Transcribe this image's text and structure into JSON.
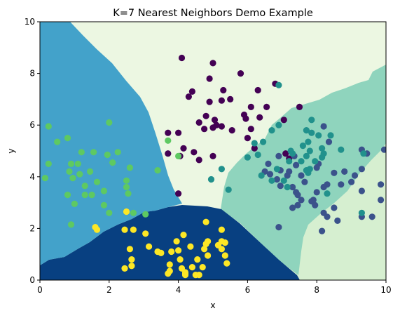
{
  "chart_data": {
    "type": "scatter",
    "title": "K=7 Nearest Neighbors Demo Example",
    "xlabel": "x",
    "ylabel": "y",
    "xlim": [
      0,
      10
    ],
    "ylim": [
      0,
      10
    ],
    "xticks": [
      "0",
      "2",
      "4",
      "6",
      "8",
      "10"
    ],
    "yticks": [
      "0",
      "2",
      "4",
      "6",
      "8",
      "10"
    ],
    "grid": false,
    "legend": "none",
    "class_colors": [
      "#440154",
      "#3b528b",
      "#21918c",
      "#5ec962",
      "#fde725"
    ],
    "region_colors": [
      "#084081",
      "#43a2ca",
      "#8fd4bd",
      "#d6efd0",
      "#ecf7e2"
    ],
    "series": [
      {
        "class": 0,
        "points": [
          [
            4.1,
            8.6
          ],
          [
            5.0,
            8.4
          ],
          [
            4.9,
            7.8
          ],
          [
            5.8,
            8.0
          ],
          [
            6.8,
            7.6
          ],
          [
            4.4,
            7.3
          ],
          [
            5.3,
            7.35
          ],
          [
            5.5,
            7.0
          ],
          [
            6.3,
            7.35
          ],
          [
            4.3,
            7.1
          ],
          [
            4.9,
            6.9
          ],
          [
            5.25,
            6.95
          ],
          [
            6.1,
            6.7
          ],
          [
            6.55,
            6.7
          ],
          [
            7.5,
            6.7
          ],
          [
            6.35,
            6.3
          ],
          [
            5.9,
            6.4
          ],
          [
            4.8,
            6.35
          ],
          [
            5.05,
            6.2
          ],
          [
            5.25,
            5.95
          ],
          [
            5.1,
            6.0
          ],
          [
            4.6,
            6.1
          ],
          [
            4.75,
            5.85
          ],
          [
            5.0,
            5.9
          ],
          [
            5.55,
            5.8
          ],
          [
            6.1,
            5.85
          ],
          [
            5.95,
            6.25
          ],
          [
            6.0,
            5.5
          ],
          [
            6.2,
            5.1
          ],
          [
            3.7,
            5.7
          ],
          [
            4.0,
            5.7
          ],
          [
            4.45,
            4.95
          ],
          [
            4.15,
            5.1
          ],
          [
            4.05,
            4.8
          ],
          [
            4.6,
            4.65
          ],
          [
            3.7,
            4.9
          ],
          [
            4.0,
            3.35
          ],
          [
            5.0,
            4.8
          ],
          [
            7.05,
            6.2
          ],
          [
            7.1,
            4.9
          ],
          [
            7.2,
            4.7
          ]
        ]
      },
      {
        "class": 1,
        "points": [
          [
            6.5,
            4.2
          ],
          [
            6.65,
            4.1
          ],
          [
            6.85,
            3.9
          ],
          [
            6.95,
            3.65
          ],
          [
            7.3,
            3.6
          ],
          [
            7.4,
            3.4
          ],
          [
            7.45,
            3.3
          ],
          [
            7.55,
            3.1
          ],
          [
            7.3,
            2.8
          ],
          [
            7.45,
            2.9
          ],
          [
            7.9,
            3.1
          ],
          [
            7.85,
            3.05
          ],
          [
            7.95,
            2.9
          ],
          [
            8.2,
            2.6
          ],
          [
            8.3,
            2.45
          ],
          [
            8.5,
            2.8
          ],
          [
            8.6,
            2.3
          ],
          [
            8.15,
            1.9
          ],
          [
            8.0,
            3.4
          ],
          [
            8.3,
            3.7
          ],
          [
            8.5,
            4.15
          ],
          [
            8.2,
            3.6
          ],
          [
            8.7,
            3.7
          ],
          [
            9.0,
            3.8
          ],
          [
            8.8,
            4.2
          ],
          [
            9.1,
            4.05
          ],
          [
            9.3,
            4.3
          ],
          [
            9.45,
            4.9
          ],
          [
            9.3,
            5.05
          ],
          [
            9.3,
            3.45
          ],
          [
            9.3,
            2.45
          ],
          [
            9.6,
            2.45
          ],
          [
            9.85,
            3.1
          ],
          [
            9.85,
            3.7
          ],
          [
            9.95,
            5.05
          ],
          [
            7.2,
            4.2
          ],
          [
            7.4,
            4.45
          ],
          [
            7.15,
            4.05
          ],
          [
            7.35,
            4.8
          ],
          [
            6.9,
            4.8
          ],
          [
            6.9,
            2.05
          ],
          [
            8.2,
            5.95
          ],
          [
            8.35,
            5.35
          ],
          [
            8.05,
            4.5
          ],
          [
            8.0,
            4.35
          ],
          [
            7.55,
            4.05
          ],
          [
            7.65,
            3.8
          ],
          [
            6.6,
            4.5
          ],
          [
            6.95,
            4.25
          ]
        ]
      },
      {
        "class": 2,
        "points": [
          [
            6.9,
            7.55
          ],
          [
            6.9,
            6.0
          ],
          [
            6.7,
            5.8
          ],
          [
            6.45,
            5.35
          ],
          [
            6.2,
            5.3
          ],
          [
            6.3,
            4.85
          ],
          [
            6.4,
            4.05
          ],
          [
            6.7,
            3.85
          ],
          [
            6.85,
            4.3
          ],
          [
            7.05,
            3.85
          ],
          [
            7.15,
            3.6
          ],
          [
            7.2,
            4.6
          ],
          [
            7.25,
            5.0
          ],
          [
            7.3,
            4.9
          ],
          [
            7.55,
            4.6
          ],
          [
            7.6,
            5.2
          ],
          [
            7.7,
            4.8
          ],
          [
            7.7,
            4.25
          ],
          [
            7.8,
            4.3
          ],
          [
            7.95,
            4.6
          ],
          [
            7.8,
            5.0
          ],
          [
            7.75,
            5.35
          ],
          [
            7.7,
            5.8
          ],
          [
            7.85,
            6.2
          ],
          [
            7.85,
            5.7
          ],
          [
            8.05,
            5.6
          ],
          [
            8.15,
            5.1
          ],
          [
            8.15,
            4.75
          ],
          [
            8.2,
            4.9
          ],
          [
            8.7,
            5.05
          ],
          [
            8.4,
            5.6
          ],
          [
            9.35,
            4.9
          ],
          [
            9.3,
            2.6
          ],
          [
            8.3,
            3.35
          ],
          [
            6.0,
            4.75
          ],
          [
            5.25,
            4.3
          ],
          [
            5.45,
            3.5
          ],
          [
            4.95,
            3.9
          ],
          [
            7.75,
            4.15
          ]
        ]
      },
      {
        "class": 3,
        "points": [
          [
            0.25,
            5.95
          ],
          [
            0.15,
            3.95
          ],
          [
            0.25,
            4.5
          ],
          [
            0.5,
            5.35
          ],
          [
            0.8,
            5.5
          ],
          [
            0.85,
            4.2
          ],
          [
            0.9,
            4.5
          ],
          [
            0.95,
            3.95
          ],
          [
            0.8,
            3.3
          ],
          [
            1.0,
            2.95
          ],
          [
            0.9,
            2.15
          ],
          [
            1.1,
            4.5
          ],
          [
            1.15,
            4.1
          ],
          [
            1.2,
            4.95
          ],
          [
            1.3,
            3.65
          ],
          [
            1.3,
            3.3
          ],
          [
            1.45,
            4.2
          ],
          [
            1.5,
            3.3
          ],
          [
            1.55,
            4.95
          ],
          [
            1.65,
            3.8
          ],
          [
            1.85,
            3.45
          ],
          [
            1.85,
            2.9
          ],
          [
            2.0,
            2.6
          ],
          [
            1.95,
            4.85
          ],
          [
            2.0,
            6.1
          ],
          [
            2.1,
            4.55
          ],
          [
            2.25,
            4.95
          ],
          [
            2.5,
            3.85
          ],
          [
            2.5,
            3.6
          ],
          [
            2.55,
            3.35
          ],
          [
            2.6,
            4.35
          ],
          [
            2.7,
            2.6
          ],
          [
            3.05,
            2.55
          ],
          [
            3.4,
            4.25
          ],
          [
            3.7,
            5.4
          ],
          [
            4.0,
            4.8
          ]
        ]
      },
      {
        "class": 4,
        "points": [
          [
            1.6,
            2.05
          ],
          [
            1.65,
            1.95
          ],
          [
            2.5,
            2.65
          ],
          [
            2.7,
            1.95
          ],
          [
            2.45,
            1.95
          ],
          [
            3.05,
            1.8
          ],
          [
            2.6,
            1.2
          ],
          [
            2.45,
            0.45
          ],
          [
            2.65,
            0.55
          ],
          [
            2.65,
            0.8
          ],
          [
            3.15,
            1.3
          ],
          [
            3.4,
            1.1
          ],
          [
            3.5,
            1.05
          ],
          [
            3.75,
            0.35
          ],
          [
            3.7,
            0.25
          ],
          [
            3.75,
            0.6
          ],
          [
            3.8,
            1.1
          ],
          [
            3.95,
            1.5
          ],
          [
            4.0,
            1.15
          ],
          [
            4.05,
            0.8
          ],
          [
            4.15,
            1.75
          ],
          [
            4.1,
            0.45
          ],
          [
            4.2,
            0.3
          ],
          [
            4.2,
            0.2
          ],
          [
            4.2,
            0.25
          ],
          [
            4.35,
            1.3
          ],
          [
            4.4,
            0.5
          ],
          [
            4.5,
            0.2
          ],
          [
            4.55,
            0.8
          ],
          [
            4.6,
            0.2
          ],
          [
            4.7,
            0.5
          ],
          [
            4.75,
            1.2
          ],
          [
            4.8,
            1.4
          ],
          [
            4.85,
            1.5
          ],
          [
            4.8,
            2.25
          ],
          [
            4.85,
            0.95
          ],
          [
            5.15,
            1.35
          ],
          [
            5.25,
            1.5
          ],
          [
            5.25,
            1.95
          ],
          [
            5.25,
            1.2
          ],
          [
            5.35,
            1.45
          ],
          [
            5.35,
            0.95
          ],
          [
            5.4,
            0.65
          ]
        ]
      }
    ]
  }
}
